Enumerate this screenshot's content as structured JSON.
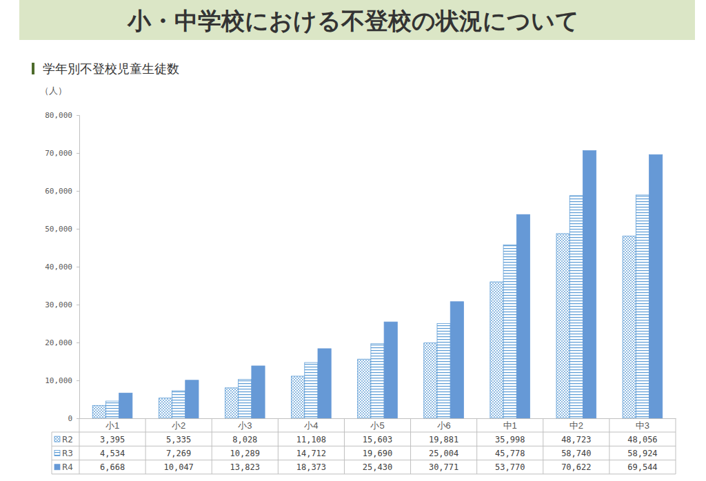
{
  "chart_data": {
    "type": "bar",
    "title": "小・中学校における不登校の状況について",
    "subtitle": "学年別不登校児童生徒数",
    "ylabel": "（人）",
    "categories": [
      "小1",
      "小2",
      "小3",
      "小4",
      "小5",
      "小6",
      "中1",
      "中2",
      "中3"
    ],
    "series": [
      {
        "name": "R2",
        "color": "#5b9bd5",
        "values": [
          3395,
          5335,
          8028,
          11108,
          15603,
          19881,
          35998,
          48723,
          48056
        ],
        "value_labels": [
          "3,395",
          "5,335",
          "8,028",
          "11,108",
          "15,603",
          "19,881",
          "35,998",
          "48,723",
          "48,056"
        ]
      },
      {
        "name": "R3",
        "color": "#5b9bd5",
        "values": [
          4534,
          7269,
          10289,
          14712,
          19690,
          25004,
          45778,
          58740,
          58924
        ],
        "value_labels": [
          "4,534",
          "7,269",
          "10,289",
          "14,712",
          "19,690",
          "25,004",
          "45,778",
          "58,740",
          "58,924"
        ]
      },
      {
        "name": "R4",
        "color": "#6699d6",
        "values": [
          6668,
          10047,
          13823,
          18373,
          25430,
          30771,
          53770,
          70622,
          69544
        ],
        "value_labels": [
          "6,668",
          "10,047",
          "13,823",
          "18,373",
          "25,430",
          "30,771",
          "53,770",
          "70,622",
          "69,544"
        ]
      }
    ],
    "ylim": [
      0,
      80000
    ],
    "yticks": [
      0,
      {
        "value": 10000,
        "label": "10,000"
      },
      {
        "value": 20000,
        "label": "20,000"
      },
      {
        "value": 30000,
        "label": "30,000"
      },
      {
        "value": 40000,
        "label": "40,000"
      },
      {
        "value": 50000,
        "label": "50,000"
      },
      {
        "value": 60000,
        "label": "60,000"
      },
      {
        "value": 70000,
        "label": "70,000"
      },
      {
        "value": 80000,
        "label": "80,000"
      }
    ],
    "grid": false,
    "data_labels": true
  }
}
